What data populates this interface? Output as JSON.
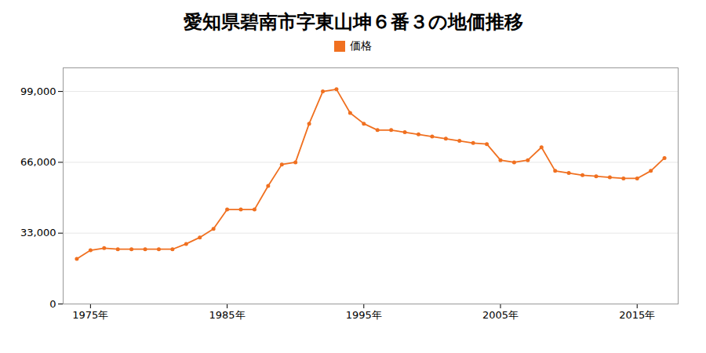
{
  "chart_data": {
    "type": "line",
    "title": "愛知県碧南市字東山坤６番３の地価推移",
    "x": [
      1974,
      1975,
      1976,
      1977,
      1978,
      1979,
      1980,
      1981,
      1982,
      1983,
      1984,
      1985,
      1986,
      1987,
      1988,
      1989,
      1990,
      1991,
      1992,
      1993,
      1994,
      1995,
      1996,
      1997,
      1998,
      1999,
      2000,
      2001,
      2002,
      2003,
      2004,
      2005,
      2006,
      2007,
      2008,
      2009,
      2010,
      2011,
      2012,
      2013,
      2014,
      2015,
      2016,
      2017
    ],
    "series": [
      {
        "name": "価格",
        "color": "#F07020",
        "marker": "circle",
        "values": [
          21000,
          25000,
          26000,
          25500,
          25500,
          25500,
          25500,
          25500,
          28000,
          31000,
          35000,
          44000,
          44000,
          44000,
          55000,
          65000,
          66000,
          84000,
          99000,
          100000,
          89000,
          84000,
          81000,
          81000,
          80000,
          79000,
          78000,
          77000,
          76000,
          75000,
          74500,
          67000,
          66000,
          67000,
          73000,
          62000,
          61000,
          60000,
          59500,
          59000,
          58500,
          58500,
          62000,
          68000
        ]
      }
    ],
    "xlim": [
      1973,
      2018
    ],
    "xticks": [
      {
        "value": 1975,
        "label": "1975年"
      },
      {
        "value": 1985,
        "label": "1985年"
      },
      {
        "value": 1995,
        "label": "1995年"
      },
      {
        "value": 2005,
        "label": "2005年"
      },
      {
        "value": 2015,
        "label": "2015年"
      }
    ],
    "ylim": [
      0,
      110000
    ],
    "yticks": [
      0,
      {
        "value": 33000,
        "label": "33,000"
      },
      {
        "value": 66000,
        "label": "66,000"
      },
      {
        "value": 99000,
        "label": "99,000"
      }
    ],
    "grid": true,
    "legend": "top"
  }
}
